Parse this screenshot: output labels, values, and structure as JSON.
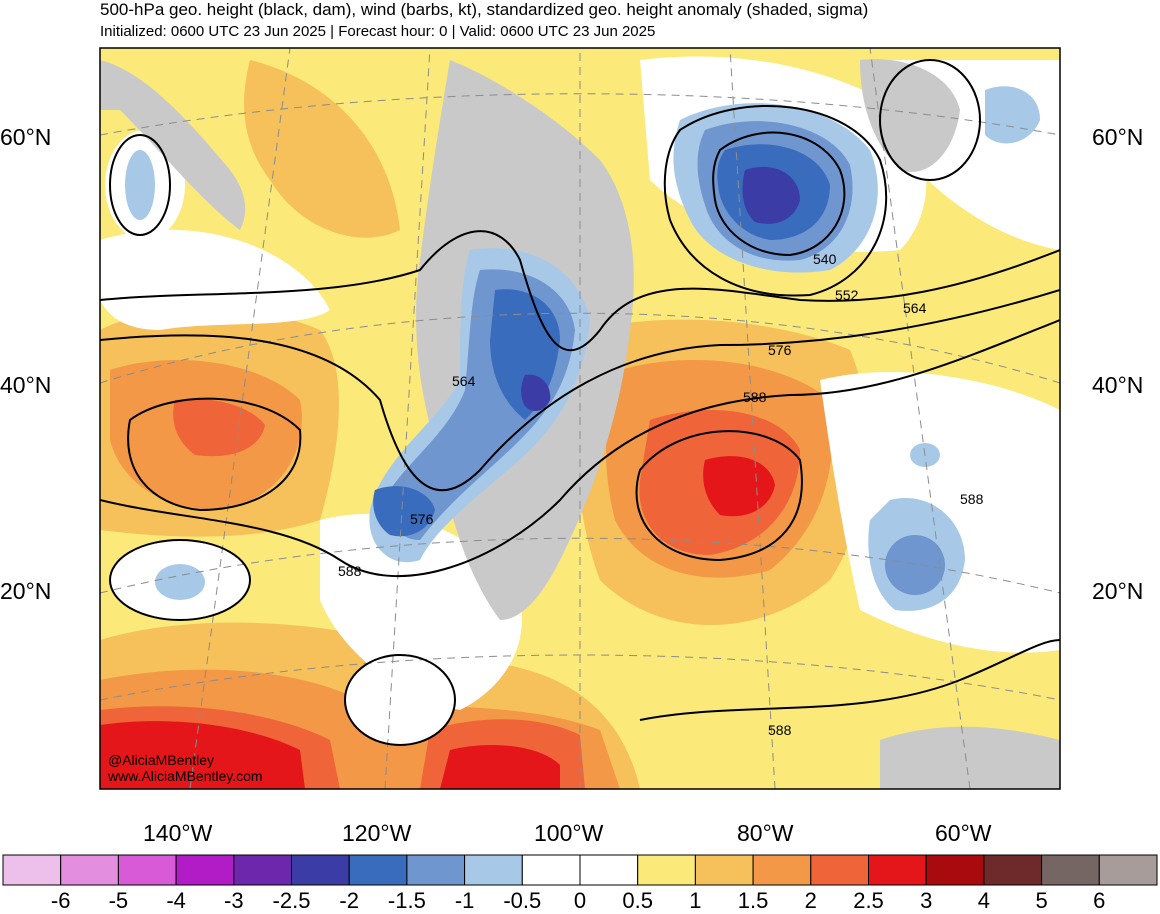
{
  "header": {
    "title": "500-hPa geo. height (black, dam), wind (barbs, kt), standardized geo. height anomaly (shaded, sigma)",
    "subtitle": "Initialized: 0600 UTC 23 Jun 2025 | Forecast hour: 0 | Valid: 0600 UTC 23 Jun 2025"
  },
  "axes": {
    "lat_labels": [
      "60°N",
      "40°N",
      "20°N"
    ],
    "lon_labels": [
      "140°W",
      "120°W",
      "100°W",
      "80°W",
      "60°W"
    ]
  },
  "contour_labels": [
    "540",
    "552",
    "564",
    "564",
    "576",
    "576",
    "588",
    "588",
    "588",
    "588"
  ],
  "credits": {
    "handle": "@AliciaMBentley",
    "site": "www.AliciaMBentley.com"
  },
  "colorbar": {
    "labels": [
      "-6",
      "-5",
      "-4",
      "-3",
      "-2.5",
      "-2",
      "-1.5",
      "-1",
      "-0.5",
      "0",
      "0.5",
      "1",
      "1.5",
      "2",
      "2.5",
      "3",
      "4",
      "5",
      "6"
    ],
    "colors": [
      "#ecc0ea",
      "#e48ee0",
      "#d85ad6",
      "#b21cc6",
      "#6d27ac",
      "#3c3ca6",
      "#3a6cbd",
      "#6f96cf",
      "#a7c9e7",
      "#ffffff",
      "#ffffff",
      "#fbe97a",
      "#f6c05a",
      "#f29846",
      "#f0643a",
      "#e4161a",
      "#a80a0e",
      "#6e2a2a",
      "#756664",
      "#a89c9a"
    ]
  },
  "colors": {
    "land_masked": "#c9c9c9",
    "contour": "#000000"
  }
}
